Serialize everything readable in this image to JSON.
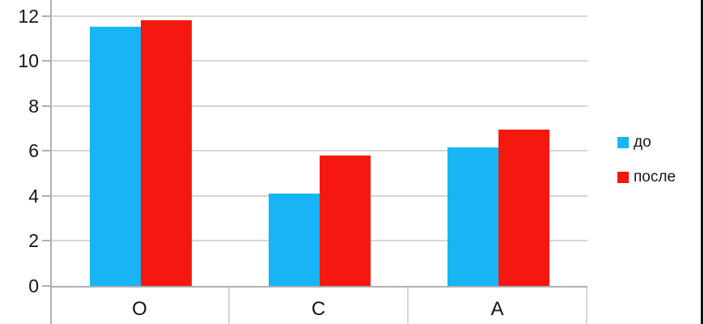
{
  "chart_data": {
    "type": "bar",
    "categories": [
      "О",
      "С",
      "А"
    ],
    "series": [
      {
        "name": "до",
        "color": "#18b5f6",
        "values": [
          11.5,
          4.1,
          6.15
        ]
      },
      {
        "name": "после",
        "color": "#f41811",
        "values": [
          11.8,
          5.8,
          6.95
        ]
      }
    ],
    "yticks": [
      0,
      2,
      4,
      6,
      8,
      10,
      12
    ],
    "ylim": [
      0,
      12.7
    ],
    "grid": true,
    "legend_position": "right"
  },
  "colors": {
    "background": "#ffffff",
    "gridline": "#d6d6d6",
    "axis": "#b0b0b0",
    "text": "#151515",
    "screenshot_right_border": "#111111"
  }
}
